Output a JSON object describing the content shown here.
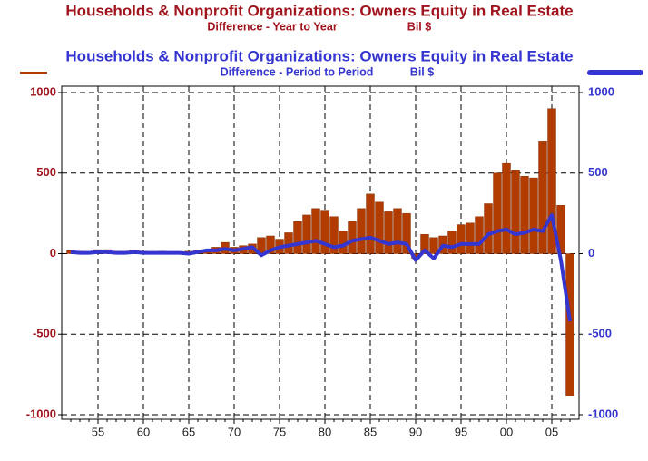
{
  "chart_data": {
    "type": "bar_line",
    "series": [
      {
        "name": "Households & Nonprofit Organizations: Owners Equity in Real Estate",
        "subtitle": "Difference - Year to Year",
        "unit": "Bil $",
        "color": "#b23c00",
        "title_color": "#a0141e",
        "type": "bar",
        "values": [
          20,
          15,
          10,
          25,
          25,
          15,
          15,
          20,
          15,
          10,
          15,
          10,
          10,
          15,
          20,
          20,
          40,
          70,
          40,
          50,
          60,
          100,
          110,
          90,
          130,
          200,
          240,
          280,
          270,
          230,
          140,
          200,
          280,
          370,
          320,
          260,
          280,
          250,
          -30,
          120,
          100,
          110,
          140,
          180,
          190,
          230,
          310,
          500,
          560,
          520,
          480,
          470,
          700,
          900,
          300,
          -880
        ]
      },
      {
        "name": "Households & Nonprofit Organizations: Owners Equity in Real Estate",
        "subtitle": "Difference - Period to Period",
        "unit": "Bil $",
        "color": "#3535d0",
        "title_color": "#3535d0",
        "type": "line",
        "axis": "y2",
        "values": [
          10,
          5,
          5,
          10,
          10,
          5,
          5,
          10,
          5,
          5,
          5,
          5,
          5,
          0,
          10,
          20,
          20,
          30,
          20,
          30,
          40,
          -10,
          20,
          40,
          50,
          60,
          70,
          80,
          60,
          40,
          50,
          80,
          90,
          100,
          80,
          60,
          70,
          60,
          -40,
          20,
          -30,
          50,
          40,
          60,
          60,
          60,
          120,
          140,
          150,
          120,
          130,
          150,
          140,
          240,
          -40,
          -420
        ]
      }
    ],
    "x": [
      1952,
      1953,
      1954,
      1955,
      1956,
      1957,
      1958,
      1959,
      1960,
      1961,
      1962,
      1963,
      1964,
      1965,
      1966,
      1967,
      1968,
      1969,
      1970,
      1971,
      1972,
      1973,
      1974,
      1975,
      1976,
      1977,
      1978,
      1979,
      1980,
      1981,
      1982,
      1983,
      1984,
      1985,
      1986,
      1987,
      1988,
      1989,
      1990,
      1991,
      1992,
      1993,
      1994,
      1995,
      1996,
      1997,
      1998,
      1999,
      2000,
      2001,
      2002,
      2003,
      2004,
      2005,
      2006,
      2007
    ],
    "xlim": [
      1951,
      2008
    ],
    "xticks": [
      {
        "value": 1955,
        "label": "55"
      },
      {
        "value": 1960,
        "label": "60"
      },
      {
        "value": 1965,
        "label": "65"
      },
      {
        "value": 1970,
        "label": "70"
      },
      {
        "value": 1975,
        "label": "75"
      },
      {
        "value": 1980,
        "label": "80"
      },
      {
        "value": 1985,
        "label": "85"
      },
      {
        "value": 1990,
        "label": "90"
      },
      {
        "value": 1995,
        "label": "95"
      },
      {
        "value": 2000,
        "label": "00"
      },
      {
        "value": 2005,
        "label": "05"
      }
    ],
    "ylim": [
      -1000,
      1000
    ],
    "yticks": [
      1000,
      500,
      0,
      -500,
      -1000
    ],
    "y2lim": [
      -1000,
      1000
    ],
    "y2ticks": [
      1000,
      500,
      0,
      -500,
      -1000
    ],
    "grid": true
  }
}
